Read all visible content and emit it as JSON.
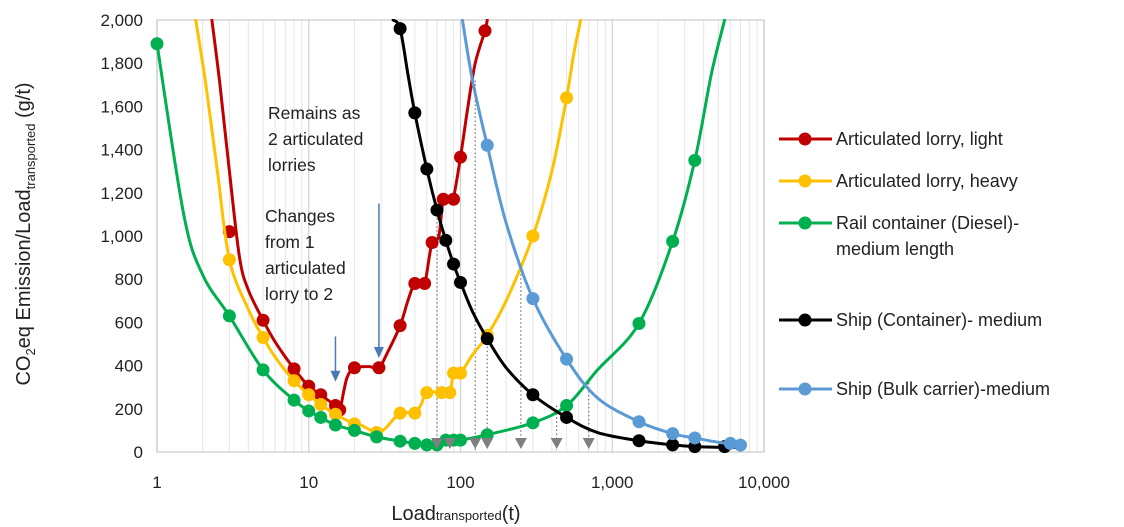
{
  "chart_data": {
    "type": "line",
    "x_scale": "log",
    "xlabel": {
      "main": "Load",
      "sub": "transported",
      "suffix": "(t)"
    },
    "ylabel": {
      "pre": "CO",
      "sub1": "2",
      "mid": "eq Emission/Load",
      "sub2": "transported",
      "suffix": " (g/t)"
    },
    "xlim": [
      1,
      10000
    ],
    "ylim": [
      0,
      2000
    ],
    "x_ticks": [
      {
        "value": 1,
        "label": "1"
      },
      {
        "value": 10,
        "label": "10"
      },
      {
        "value": 100,
        "label": "100"
      },
      {
        "value": 1000,
        "label": "1,000"
      },
      {
        "value": 10000,
        "label": "10,000"
      }
    ],
    "y_ticks": [
      {
        "value": 0,
        "label": "0"
      },
      {
        "value": 200,
        "label": "200"
      },
      {
        "value": 400,
        "label": "400"
      },
      {
        "value": 600,
        "label": "600"
      },
      {
        "value": 800,
        "label": "800"
      },
      {
        "value": 1000,
        "label": "1,000"
      },
      {
        "value": 1200,
        "label": "1,200"
      },
      {
        "value": 1400,
        "label": "1,400"
      },
      {
        "value": 1600,
        "label": "1,600"
      },
      {
        "value": 1800,
        "label": "1,800"
      },
      {
        "value": 2000,
        "label": "2,000"
      }
    ],
    "grid": "vertical minor and major log gridlines",
    "legend_position": "right",
    "series": [
      {
        "name": "Articulated lorry, light",
        "color": "#c00000",
        "line_points": [
          [
            2.3,
            2000
          ],
          [
            2.6,
            1700
          ],
          [
            3,
            1300
          ],
          [
            3.5,
            900
          ],
          [
            4,
            750
          ],
          [
            5,
            610
          ],
          [
            6,
            510
          ],
          [
            8,
            385
          ],
          [
            10,
            305
          ],
          [
            12,
            265
          ],
          [
            14,
            230
          ],
          [
            15,
            215
          ],
          [
            16,
            195
          ],
          [
            17,
            280
          ],
          [
            18,
            350
          ],
          [
            20,
            390
          ],
          [
            25,
            395
          ],
          [
            29,
            390
          ],
          [
            33,
            460
          ],
          [
            40,
            585
          ],
          [
            45,
            700
          ],
          [
            50,
            780
          ],
          [
            58,
            780
          ],
          [
            60,
            830
          ],
          [
            65,
            970
          ],
          [
            72,
            1000
          ],
          [
            77,
            1170
          ],
          [
            85,
            1170
          ],
          [
            90,
            1180
          ],
          [
            100,
            1365
          ],
          [
            112,
            1600
          ],
          [
            125,
            1800
          ],
          [
            145,
            1950
          ],
          [
            150,
            2000
          ]
        ],
        "markers": [
          [
            3,
            1020
          ],
          [
            5,
            610
          ],
          [
            8,
            385
          ],
          [
            10,
            305
          ],
          [
            12,
            265
          ],
          [
            15,
            215
          ],
          [
            16,
            195
          ],
          [
            20,
            390
          ],
          [
            29,
            390
          ],
          [
            40,
            585
          ],
          [
            50,
            780
          ],
          [
            58,
            780
          ],
          [
            65,
            970
          ],
          [
            77,
            1170
          ],
          [
            90,
            1170
          ],
          [
            100,
            1365
          ],
          [
            145,
            1950
          ]
        ]
      },
      {
        "name": "Articulated lorry, heavy",
        "color": "#ffc000",
        "line_points": [
          [
            1.8,
            2000
          ],
          [
            2.1,
            1700
          ],
          [
            2.5,
            1300
          ],
          [
            3,
            890
          ],
          [
            4,
            660
          ],
          [
            5,
            530
          ],
          [
            6,
            440
          ],
          [
            8,
            330
          ],
          [
            10,
            265
          ],
          [
            12,
            220
          ],
          [
            15,
            175
          ],
          [
            20,
            130
          ],
          [
            22,
            125
          ],
          [
            28,
            90
          ],
          [
            32,
            110
          ],
          [
            40,
            180
          ],
          [
            50,
            180
          ],
          [
            55,
            220
          ],
          [
            60,
            275
          ],
          [
            75,
            275
          ],
          [
            85,
            280
          ],
          [
            90,
            365
          ],
          [
            100,
            365
          ],
          [
            120,
            450
          ],
          [
            150,
            540
          ],
          [
            200,
            700
          ],
          [
            300,
            1000
          ],
          [
            400,
            1300
          ],
          [
            500,
            1640
          ],
          [
            560,
            1850
          ],
          [
            620,
            2000
          ]
        ],
        "markers": [
          [
            3,
            890
          ],
          [
            5,
            530
          ],
          [
            8,
            330
          ],
          [
            10,
            265
          ],
          [
            12,
            220
          ],
          [
            15,
            175
          ],
          [
            20,
            130
          ],
          [
            28,
            90
          ],
          [
            40,
            180
          ],
          [
            50,
            180
          ],
          [
            60,
            275
          ],
          [
            75,
            275
          ],
          [
            85,
            275
          ],
          [
            90,
            365
          ],
          [
            100,
            365
          ],
          [
            150,
            540
          ],
          [
            300,
            1000
          ],
          [
            500,
            1640
          ]
        ]
      },
      {
        "name": "Rail container (Diesel)-medium length",
        "color": "#00b050",
        "line_points": [
          [
            1,
            1890
          ],
          [
            1.5,
            1100
          ],
          [
            2,
            820
          ],
          [
            3,
            630
          ],
          [
            5,
            380
          ],
          [
            8,
            240
          ],
          [
            10,
            190
          ],
          [
            12,
            160
          ],
          [
            15,
            125
          ],
          [
            20,
            100
          ],
          [
            28,
            70
          ],
          [
            40,
            50
          ],
          [
            50,
            40
          ],
          [
            60,
            33
          ],
          [
            70,
            33
          ],
          [
            80,
            50
          ],
          [
            100,
            55
          ],
          [
            150,
            80
          ],
          [
            300,
            135
          ],
          [
            500,
            215
          ],
          [
            800,
            380
          ],
          [
            1500,
            595
          ],
          [
            2500,
            975
          ],
          [
            3500,
            1350
          ],
          [
            4500,
            1750
          ],
          [
            5500,
            2000
          ]
        ],
        "markers": [
          [
            1,
            1890
          ],
          [
            3,
            630
          ],
          [
            5,
            380
          ],
          [
            8,
            240
          ],
          [
            10,
            190
          ],
          [
            12,
            160
          ],
          [
            15,
            125
          ],
          [
            20,
            100
          ],
          [
            28,
            70
          ],
          [
            40,
            50
          ],
          [
            50,
            40
          ],
          [
            60,
            33
          ],
          [
            70,
            33
          ],
          [
            80,
            55
          ],
          [
            90,
            55
          ],
          [
            100,
            55
          ],
          [
            150,
            80
          ],
          [
            300,
            135
          ],
          [
            500,
            215
          ],
          [
            1500,
            595
          ],
          [
            2500,
            975
          ],
          [
            3500,
            1350
          ]
        ]
      },
      {
        "name": "Ship (Container)- medium",
        "color": "#000000",
        "line_points": [
          [
            36,
            2000
          ],
          [
            40,
            1960
          ],
          [
            45,
            1750
          ],
          [
            50,
            1570
          ],
          [
            60,
            1310
          ],
          [
            70,
            1120
          ],
          [
            80,
            980
          ],
          [
            90,
            870
          ],
          [
            100,
            785
          ],
          [
            120,
            650
          ],
          [
            150,
            525
          ],
          [
            200,
            390
          ],
          [
            300,
            265
          ],
          [
            500,
            160
          ],
          [
            800,
            90
          ],
          [
            1500,
            52
          ],
          [
            2500,
            33
          ],
          [
            3500,
            25
          ],
          [
            5000,
            22
          ],
          [
            7000,
            20
          ]
        ],
        "markers": [
          [
            40,
            1960
          ],
          [
            50,
            1570
          ],
          [
            60,
            1310
          ],
          [
            70,
            1120
          ],
          [
            80,
            980
          ],
          [
            90,
            870
          ],
          [
            100,
            785
          ],
          [
            150,
            525
          ],
          [
            300,
            265
          ],
          [
            500,
            160
          ],
          [
            1500,
            52
          ],
          [
            2500,
            33
          ],
          [
            3500,
            25
          ],
          [
            5500,
            25
          ]
        ]
      },
      {
        "name": "Ship (Bulk carrier)-medium",
        "color": "#5b9bd5",
        "line_points": [
          [
            103,
            2000
          ],
          [
            120,
            1720
          ],
          [
            150,
            1420
          ],
          [
            200,
            1060
          ],
          [
            300,
            710
          ],
          [
            500,
            430
          ],
          [
            800,
            250
          ],
          [
            1500,
            140
          ],
          [
            2500,
            85
          ],
          [
            3500,
            65
          ],
          [
            5000,
            45
          ],
          [
            7000,
            32
          ]
        ],
        "markers": [
          [
            150,
            1420
          ],
          [
            300,
            710
          ],
          [
            500,
            430
          ],
          [
            1500,
            140
          ],
          [
            2500,
            85
          ],
          [
            3500,
            65
          ],
          [
            6000,
            40
          ],
          [
            7000,
            32
          ]
        ]
      }
    ],
    "dotted_drops": [
      {
        "x": 70,
        "y": 1120
      },
      {
        "x": 125,
        "y": 1720
      },
      {
        "x": 150,
        "y": 525
      },
      {
        "x": 250,
        "y": 860
      },
      {
        "x": 430,
        "y": 215
      },
      {
        "x": 700,
        "y": 320
      }
    ],
    "threshold_markers_x": [
      70,
      85,
      125,
      150,
      250,
      430,
      700
    ],
    "annotations": [
      {
        "lines": [
          "Changes",
          "from 1",
          "articulated",
          "lorry to 2"
        ],
        "arrow_x": 15,
        "arrow_y_top": 535,
        "arrow_y_bottom": 330
      },
      {
        "lines": [
          "Remains as",
          "2 articulated",
          "lorries"
        ],
        "arrow_x": 29,
        "arrow_y_top": 1150,
        "arrow_y_bottom": 440
      }
    ]
  }
}
